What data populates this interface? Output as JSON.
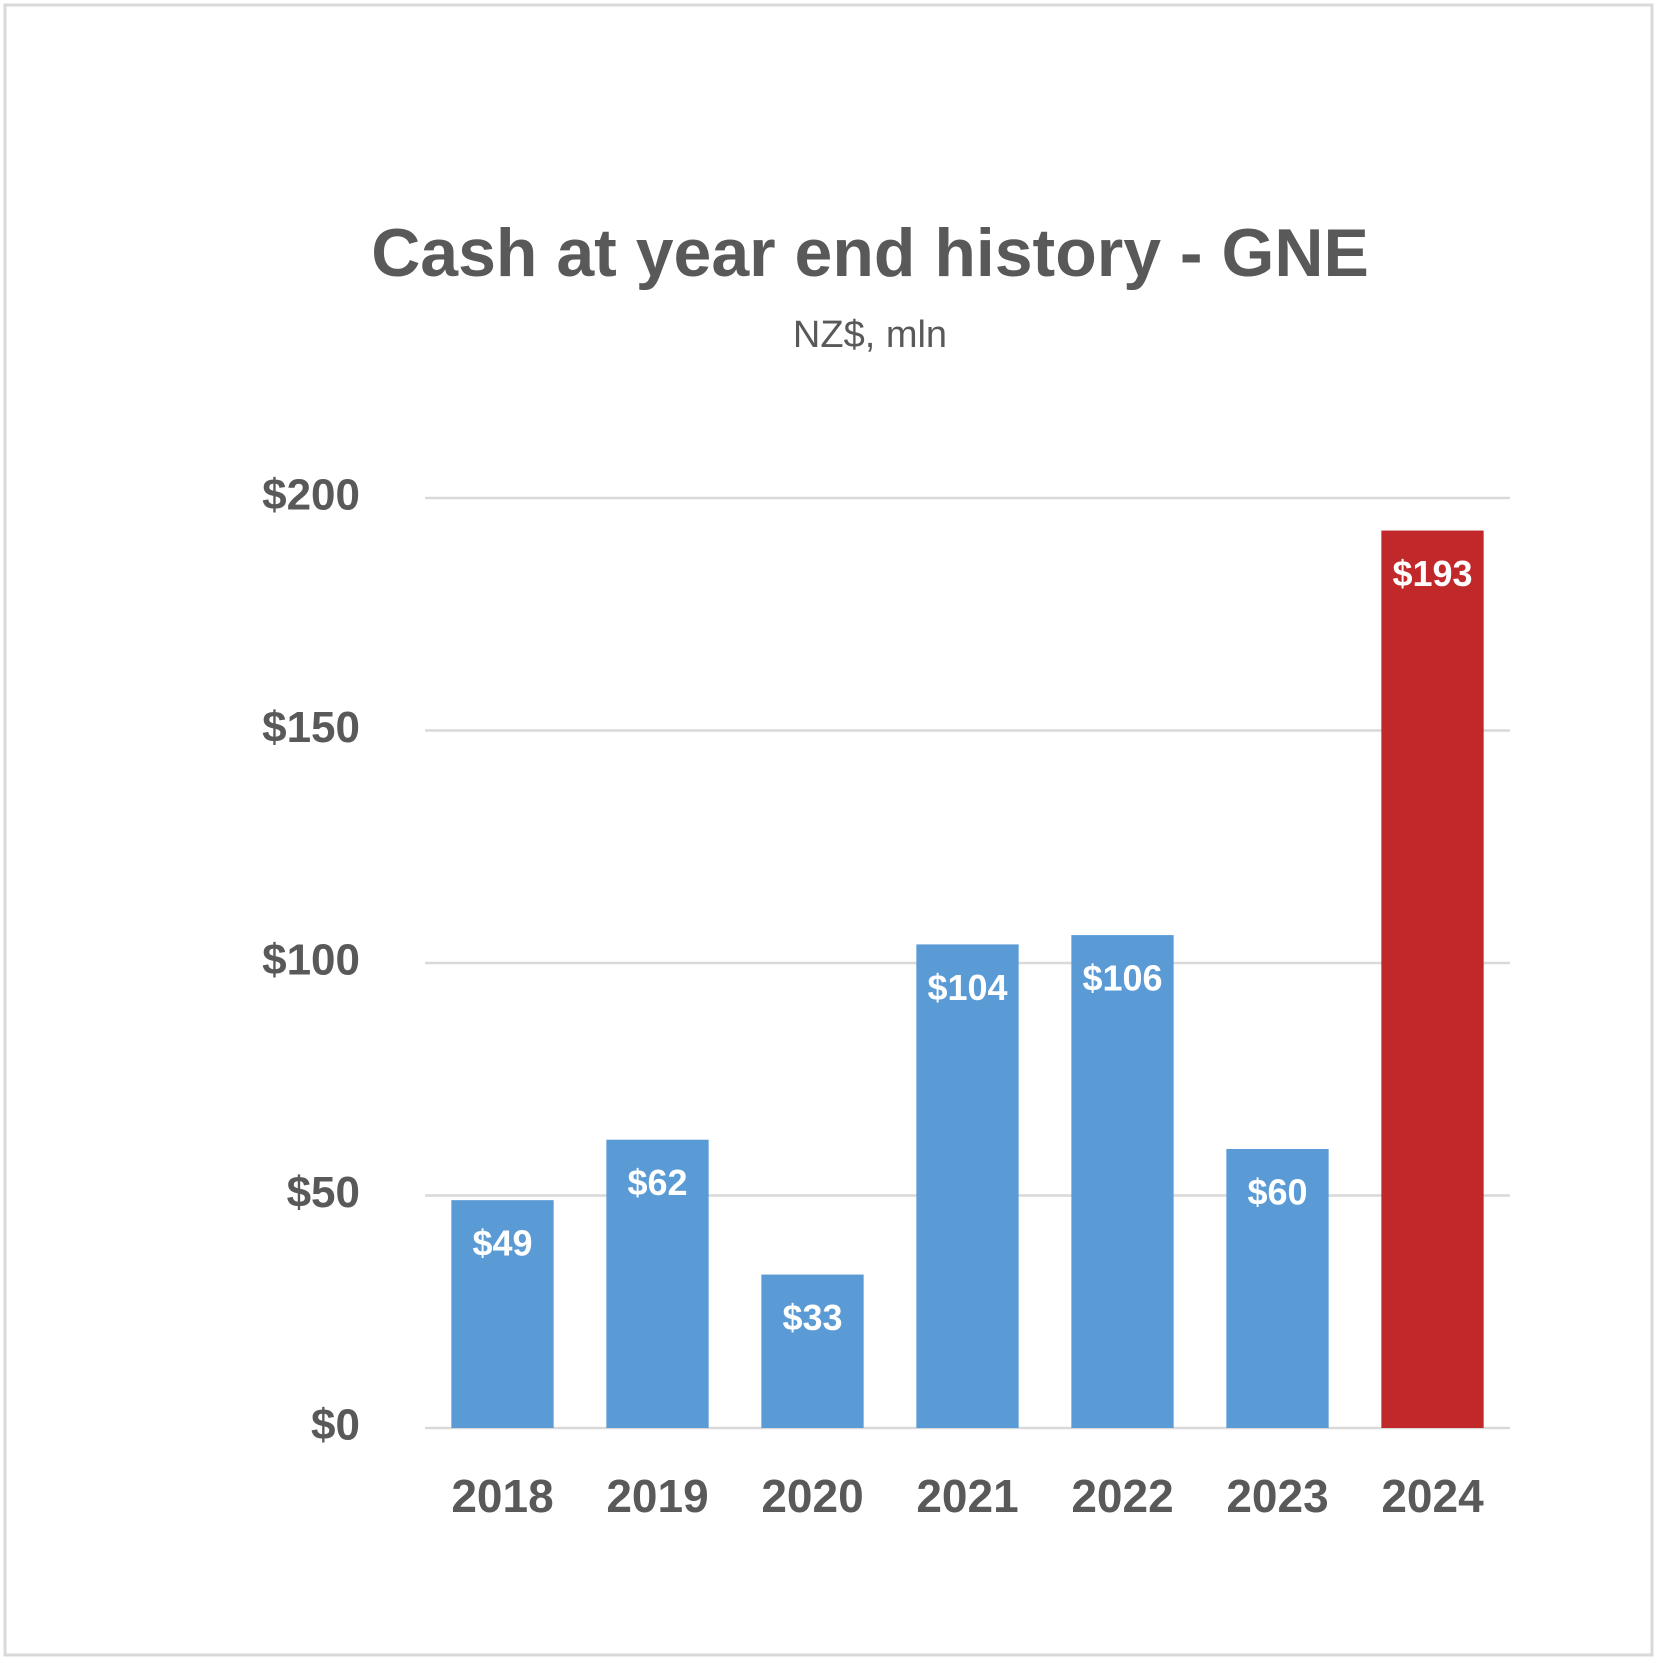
{
  "chart_data": {
    "type": "bar",
    "title": "Cash at year end history - GNE",
    "subtitle": "NZ$, mln",
    "categories": [
      "2018",
      "2019",
      "2020",
      "2021",
      "2022",
      "2023",
      "2024"
    ],
    "values": [
      49,
      62,
      33,
      104,
      106,
      60,
      193
    ],
    "value_labels": [
      "$49",
      "$62",
      "$33",
      "$104",
      "$106",
      "$60",
      "$193"
    ],
    "colors": [
      "#5b9bd5",
      "#5b9bd5",
      "#5b9bd5",
      "#5b9bd5",
      "#5b9bd5",
      "#5b9bd5",
      "#c0282a"
    ],
    "ylim": [
      0,
      200
    ],
    "yticks": [
      {
        "value": 0,
        "label": "$0"
      },
      {
        "value": 50,
        "label": "$50"
      },
      {
        "value": 100,
        "label": "$100"
      },
      {
        "value": 150,
        "label": "$150"
      },
      {
        "value": 200,
        "label": "$200"
      }
    ],
    "grid": true
  }
}
